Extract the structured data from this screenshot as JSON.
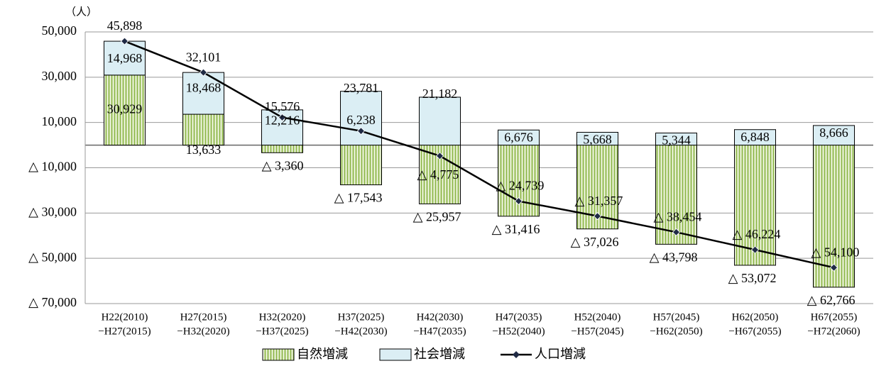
{
  "chart_data": {
    "type": "bar-line",
    "unit_label": "（人）",
    "categories": [
      [
        "H22(2010)",
        "−H27(2015)"
      ],
      [
        "H27(2015)",
        "−H32(2020)"
      ],
      [
        "H32(2020)",
        "−H37(2025)"
      ],
      [
        "H37(2025)",
        "−H42(2030)"
      ],
      [
        "H42(2030)",
        "−H47(2035)"
      ],
      [
        "H47(2035)",
        "−H52(2040)"
      ],
      [
        "H52(2040)",
        "−H57(2045)"
      ],
      [
        "H57(2045)",
        "−H62(2050)"
      ],
      [
        "H62(2050)",
        "−H67(2055)"
      ],
      [
        "H67(2055)",
        "−H72(2060)"
      ]
    ],
    "series": [
      {
        "name": "自然増減",
        "type": "bar",
        "color": "#8fb84c",
        "values": [
          30929,
          13633,
          -3360,
          -17543,
          -25957,
          -31416,
          -37026,
          -43798,
          -53072,
          -62766
        ],
        "value_labels": [
          "30,929",
          "13,633",
          "△ 3,360",
          "△ 17,543",
          "△ 25,957",
          "△ 31,416",
          "△ 37,026",
          "△ 43,798",
          "△ 53,072",
          "△ 62,766"
        ]
      },
      {
        "name": "社会増減",
        "type": "bar",
        "color": "#dbeef4",
        "values": [
          14968,
          18468,
          15576,
          23781,
          21182,
          6676,
          5668,
          5344,
          6848,
          8666
        ],
        "value_labels": [
          "14,968",
          "18,468",
          "15,576",
          "23,781",
          "21,182",
          "6,676",
          "5,668",
          "5,344",
          "6,848",
          "8,666"
        ]
      },
      {
        "name": "人口増減",
        "type": "line",
        "color": "#000000",
        "values": [
          45898,
          32101,
          12216,
          6238,
          -4775,
          -24739,
          -31357,
          -38454,
          -46224,
          -54100
        ],
        "value_labels": [
          "45,898",
          "32,101",
          "12,216",
          "6,238",
          "△ 4,775",
          "△ 24,739",
          "△ 31,357",
          "△ 38,454",
          "△ 46,224",
          "△ 54,100"
        ]
      }
    ],
    "ylim": [
      -70000,
      50000
    ],
    "yticks": [
      {
        "value": -70000,
        "label": "△ 70,000"
      },
      {
        "value": -50000,
        "label": "△ 50,000"
      },
      {
        "value": -30000,
        "label": "△ 30,000"
      },
      {
        "value": -10000,
        "label": "△ 10,000"
      },
      {
        "value": 10000,
        "label": "10,000"
      },
      {
        "value": 30000,
        "label": "30,000"
      },
      {
        "value": 50000,
        "label": "50,000"
      }
    ],
    "grid": true,
    "legend": "bottom"
  }
}
